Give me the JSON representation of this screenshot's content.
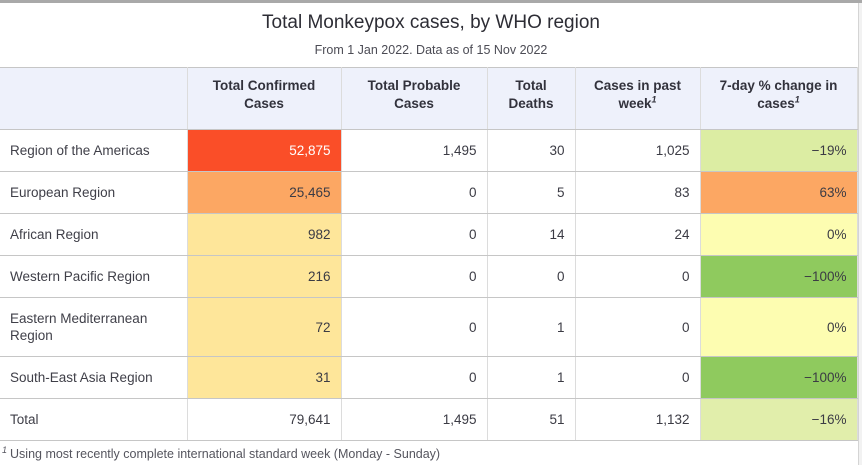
{
  "header": {
    "title": "Total Monkeypox cases, by WHO region",
    "subtitle": "From 1 Jan 2022. Data as of 15 Nov 2022"
  },
  "colors": {
    "header_bg": "#eef1fb",
    "top_bar": "#a9a9a9",
    "heat_red": "#fa4e28",
    "heat_orange": "#fca763",
    "heat_yellow": "#fee69a",
    "heat_pale_yellow": "#fdfdb1",
    "heat_light_green": "#dceda3",
    "heat_green": "#8fca5e"
  },
  "table": {
    "columns": [
      {
        "label": ""
      },
      {
        "label": "Total Confirmed Cases"
      },
      {
        "label": "Total Probable Cases"
      },
      {
        "label": "Total Deaths"
      },
      {
        "label": "Cases in past week",
        "sup": "1"
      },
      {
        "label": "7-day % change in cases",
        "sup": "1"
      }
    ],
    "rows": [
      {
        "region": "Region of the Americas",
        "confirmed": "52,875",
        "confirmed_bg": "#fa4e28",
        "confirmed_fg": "#ffffff",
        "probable": "1,495",
        "deaths": "30",
        "past_week": "1,025",
        "change": "−19%",
        "change_bg": "#dceda3"
      },
      {
        "region": "European Region",
        "confirmed": "25,465",
        "confirmed_bg": "#fca763",
        "probable": "0",
        "deaths": "5",
        "past_week": "83",
        "change": "63%",
        "change_bg": "#fca763"
      },
      {
        "region": "African Region",
        "confirmed": "982",
        "confirmed_bg": "#fee69a",
        "probable": "0",
        "deaths": "14",
        "past_week": "24",
        "change": "0%",
        "change_bg": "#fdfdb1"
      },
      {
        "region": "Western Pacific Region",
        "confirmed": "216",
        "confirmed_bg": "#fee69a",
        "probable": "0",
        "deaths": "0",
        "past_week": "0",
        "change": "−100%",
        "change_bg": "#8fca5e"
      },
      {
        "region": "Eastern Mediterranean Region",
        "confirmed": "72",
        "confirmed_bg": "#fee69a",
        "probable": "0",
        "deaths": "1",
        "past_week": "0",
        "change": "0%",
        "change_bg": "#fdfdb1"
      },
      {
        "region": "South-East Asia Region",
        "confirmed": "31",
        "confirmed_bg": "#fee69a",
        "probable": "0",
        "deaths": "1",
        "past_week": "0",
        "change": "−100%",
        "change_bg": "#8fca5e"
      }
    ],
    "total_row": {
      "region": "Total",
      "confirmed": "79,641",
      "probable": "1,495",
      "deaths": "51",
      "past_week": "1,132",
      "change": "−16%",
      "change_bg": "#e1eeab"
    }
  },
  "footnote": {
    "mark": "1",
    "text": "Using most recently complete international standard week (Monday - Sunday)"
  },
  "chart_data": {
    "type": "table",
    "title": "Total Monkeypox cases, by WHO region",
    "subtitle": "From 1 Jan 2022. Data as of 15 Nov 2022",
    "columns": [
      "Total Confirmed Cases",
      "Total Probable Cases",
      "Total Deaths",
      "Cases in past week",
      "7-day % change in cases"
    ],
    "categories": [
      "Region of the Americas",
      "European Region",
      "African Region",
      "Western Pacific Region",
      "Eastern Mediterranean Region",
      "South-East Asia Region",
      "Total"
    ],
    "series": [
      {
        "name": "Total Confirmed Cases",
        "values": [
          52875,
          25465,
          982,
          216,
          72,
          31,
          79641
        ]
      },
      {
        "name": "Total Probable Cases",
        "values": [
          1495,
          0,
          0,
          0,
          0,
          0,
          1495
        ]
      },
      {
        "name": "Total Deaths",
        "values": [
          30,
          5,
          14,
          0,
          1,
          1,
          51
        ]
      },
      {
        "name": "Cases in past week",
        "values": [
          1025,
          83,
          24,
          0,
          0,
          0,
          1132
        ]
      },
      {
        "name": "7-day % change in cases (%)",
        "values": [
          -19,
          63,
          0,
          -100,
          0,
          -100,
          -16
        ]
      }
    ],
    "footnote": "1 Using most recently complete international standard week (Monday - Sunday)"
  }
}
